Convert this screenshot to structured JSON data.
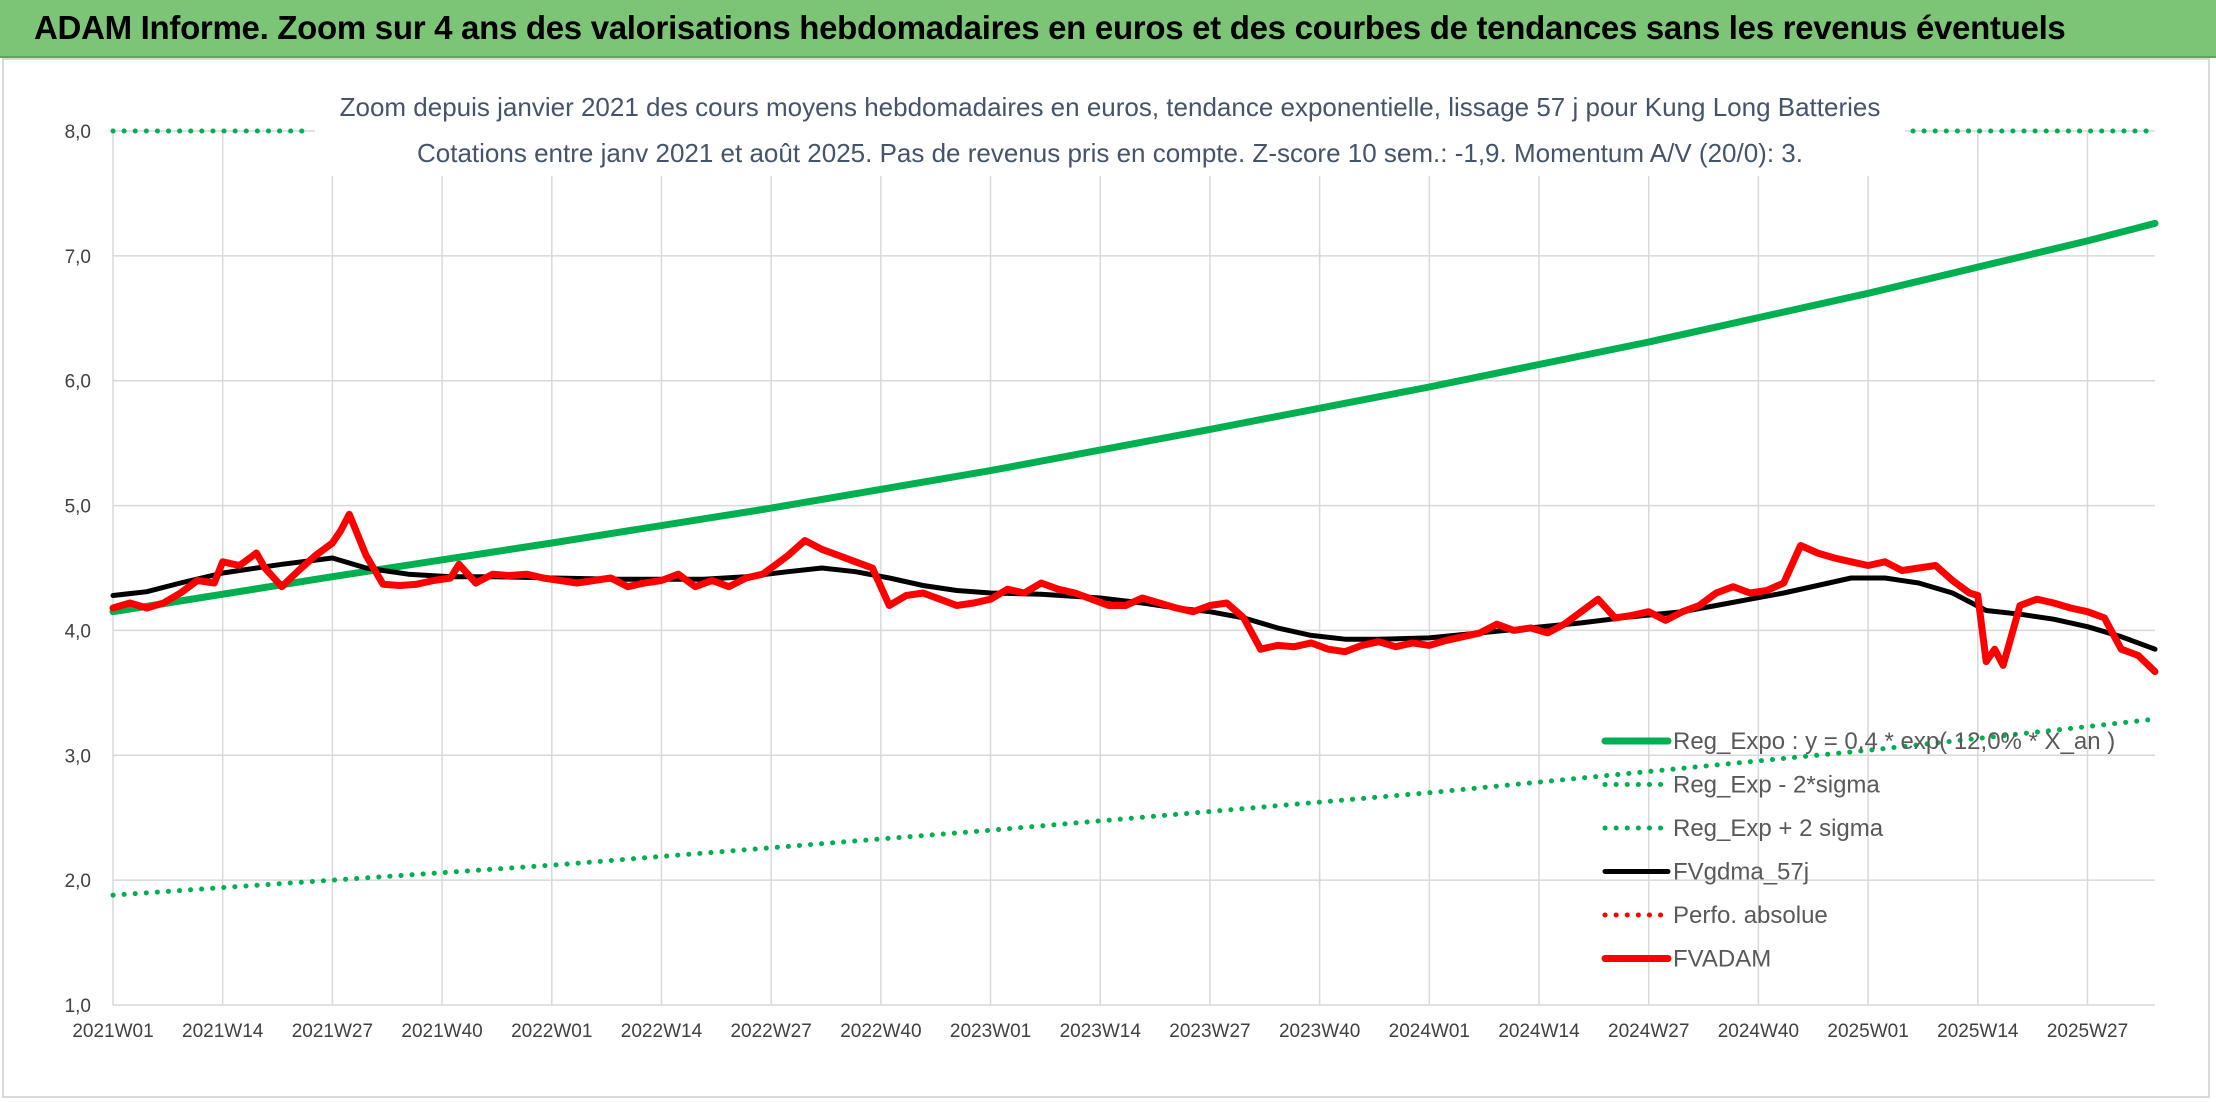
{
  "header": {
    "title": "ADAM Informe. Zoom sur 4 ans des valorisations hebdomadaires en euros et des courbes de tendances sans les revenus éventuels"
  },
  "chart_data": {
    "type": "line",
    "title_line1": "Zoom depuis janvier 2021 des cours moyens hebdomadaires en euros, tendance exponentielle, lissage 57 j pour Kung Long Batteries",
    "title_line2": "Cotations entre janv 2021 et août 2025. Pas de revenus pris en compte. Z-score 10 sem.: -1,9. Momentum A/V (20/0): 3.",
    "ylim": [
      1.0,
      8.0
    ],
    "yticks": [
      "1,0",
      "2,0",
      "3,0",
      "4,0",
      "5,0",
      "6,0",
      "7,0",
      "8,0"
    ],
    "xlim": [
      0,
      242
    ],
    "xticks": [
      {
        "x": 0,
        "label": "2021W01"
      },
      {
        "x": 13,
        "label": "2021W14"
      },
      {
        "x": 26,
        "label": "2021W27"
      },
      {
        "x": 39,
        "label": "2021W40"
      },
      {
        "x": 52,
        "label": "2022W01"
      },
      {
        "x": 65,
        "label": "2022W14"
      },
      {
        "x": 78,
        "label": "2022W27"
      },
      {
        "x": 91,
        "label": "2022W40"
      },
      {
        "x": 104,
        "label": "2023W01"
      },
      {
        "x": 117,
        "label": "2023W14"
      },
      {
        "x": 130,
        "label": "2023W27"
      },
      {
        "x": 143,
        "label": "2023W40"
      },
      {
        "x": 156,
        "label": "2024W01"
      },
      {
        "x": 169,
        "label": "2024W14"
      },
      {
        "x": 182,
        "label": "2024W27"
      },
      {
        "x": 195,
        "label": "2024W40"
      },
      {
        "x": 208,
        "label": "2025W01"
      },
      {
        "x": 221,
        "label": "2025W14"
      },
      {
        "x": 234,
        "label": "2025W27"
      }
    ],
    "grid": true,
    "legend_position": "bottom-right",
    "series": [
      {
        "name": "Reg_Expo : y = 0,4 * exp( 12,0% * X_an )",
        "style": "solid-thick",
        "color": "#00b050",
        "x": [
          0,
          26,
          52,
          78,
          104,
          130,
          156,
          182,
          208,
          234,
          242
        ],
        "y": [
          4.15,
          4.43,
          4.7,
          4.98,
          5.28,
          5.61,
          5.95,
          6.31,
          6.7,
          7.12,
          7.26
        ]
      },
      {
        "name": "Reg_Exp - 2*sigma",
        "style": "dotted",
        "color": "#00b050",
        "x": [
          0,
          26,
          52,
          78,
          104,
          130,
          156,
          182,
          208,
          234,
          242
        ],
        "y": [
          1.88,
          2.0,
          2.12,
          2.26,
          2.4,
          2.55,
          2.7,
          2.87,
          3.04,
          3.23,
          3.29
        ]
      },
      {
        "name": "Reg_Exp + 2 sigma",
        "style": "dotted",
        "color": "#00b050",
        "x": [
          0,
          23
        ],
        "y": [
          8.0,
          8.0
        ]
      },
      {
        "name": "FVgdma_57j",
        "style": "solid",
        "color": "#000000",
        "x": [
          0,
          4,
          8,
          13,
          20,
          26,
          30,
          35,
          40,
          45,
          52,
          60,
          65,
          70,
          75,
          80,
          84,
          88,
          92,
          96,
          100,
          104,
          110,
          117,
          122,
          126,
          130,
          134,
          138,
          142,
          146,
          150,
          156,
          162,
          168,
          174,
          180,
          186,
          190,
          194,
          198,
          202,
          206,
          210,
          214,
          218,
          222,
          226,
          230,
          234,
          238,
          242
        ],
        "y": [
          4.28,
          4.31,
          4.38,
          4.46,
          4.53,
          4.58,
          4.5,
          4.45,
          4.43,
          4.43,
          4.42,
          4.41,
          4.41,
          4.41,
          4.43,
          4.47,
          4.5,
          4.47,
          4.42,
          4.36,
          4.32,
          4.3,
          4.29,
          4.26,
          4.22,
          4.18,
          4.15,
          4.1,
          4.02,
          3.96,
          3.93,
          3.93,
          3.94,
          3.98,
          4.02,
          4.06,
          4.11,
          4.15,
          4.2,
          4.25,
          4.3,
          4.36,
          4.42,
          4.42,
          4.38,
          4.3,
          4.16,
          4.13,
          4.09,
          4.03,
          3.95,
          3.85
        ]
      },
      {
        "name": "Perfo. absolue",
        "style": "dotted",
        "color": "#ff0000",
        "x": [],
        "y": []
      },
      {
        "name": "FVADAM",
        "style": "solid-thick",
        "color": "#ff0000",
        "x": [
          0,
          2,
          4,
          6,
          8,
          10,
          12,
          13,
          15,
          17,
          18,
          20,
          22,
          24,
          26,
          27,
          28,
          30,
          32,
          34,
          36,
          38,
          40,
          41,
          43,
          45,
          47,
          49,
          51,
          53,
          55,
          57,
          59,
          61,
          63,
          65,
          67,
          69,
          71,
          73,
          75,
          77,
          79,
          80,
          82,
          84,
          86,
          88,
          90,
          92,
          94,
          96,
          98,
          100,
          102,
          104,
          106,
          108,
          110,
          112,
          114,
          116,
          118,
          120,
          122,
          124,
          126,
          128,
          130,
          132,
          134,
          136,
          138,
          140,
          142,
          144,
          146,
          148,
          150,
          152,
          154,
          156,
          158,
          160,
          162,
          164,
          166,
          168,
          170,
          172,
          174,
          176,
          178,
          180,
          182,
          184,
          186,
          188,
          190,
          192,
          194,
          196,
          198,
          200,
          202,
          204,
          206,
          208,
          210,
          212,
          214,
          216,
          218,
          220,
          221,
          222,
          223,
          224,
          226,
          228,
          230,
          232,
          234,
          236,
          238,
          240,
          242
        ],
        "y": [
          4.18,
          4.22,
          4.18,
          4.22,
          4.3,
          4.4,
          4.38,
          4.55,
          4.52,
          4.62,
          4.5,
          4.35,
          4.48,
          4.6,
          4.7,
          4.8,
          4.93,
          4.6,
          4.37,
          4.36,
          4.37,
          4.4,
          4.42,
          4.53,
          4.38,
          4.45,
          4.44,
          4.45,
          4.42,
          4.4,
          4.38,
          4.4,
          4.42,
          4.35,
          4.38,
          4.4,
          4.45,
          4.35,
          4.4,
          4.35,
          4.42,
          4.45,
          4.55,
          4.6,
          4.72,
          4.65,
          4.6,
          4.55,
          4.5,
          4.2,
          4.28,
          4.3,
          4.25,
          4.2,
          4.22,
          4.25,
          4.33,
          4.3,
          4.38,
          4.33,
          4.3,
          4.25,
          4.2,
          4.2,
          4.26,
          4.22,
          4.18,
          4.15,
          4.2,
          4.22,
          4.1,
          3.85,
          3.88,
          3.87,
          3.9,
          3.85,
          3.83,
          3.88,
          3.91,
          3.87,
          3.9,
          3.88,
          3.92,
          3.95,
          3.98,
          4.05,
          4.0,
          4.02,
          3.98,
          4.05,
          4.15,
          4.25,
          4.1,
          4.12,
          4.15,
          4.08,
          4.15,
          4.2,
          4.3,
          4.35,
          4.3,
          4.32,
          4.38,
          4.68,
          4.62,
          4.58,
          4.55,
          4.52,
          4.55,
          4.48,
          4.5,
          4.52,
          4.4,
          4.3,
          4.28,
          3.75,
          3.85,
          3.72,
          4.2,
          4.25,
          4.22,
          4.18,
          4.15,
          4.1,
          3.85,
          3.8,
          3.67
        ]
      }
    ]
  }
}
